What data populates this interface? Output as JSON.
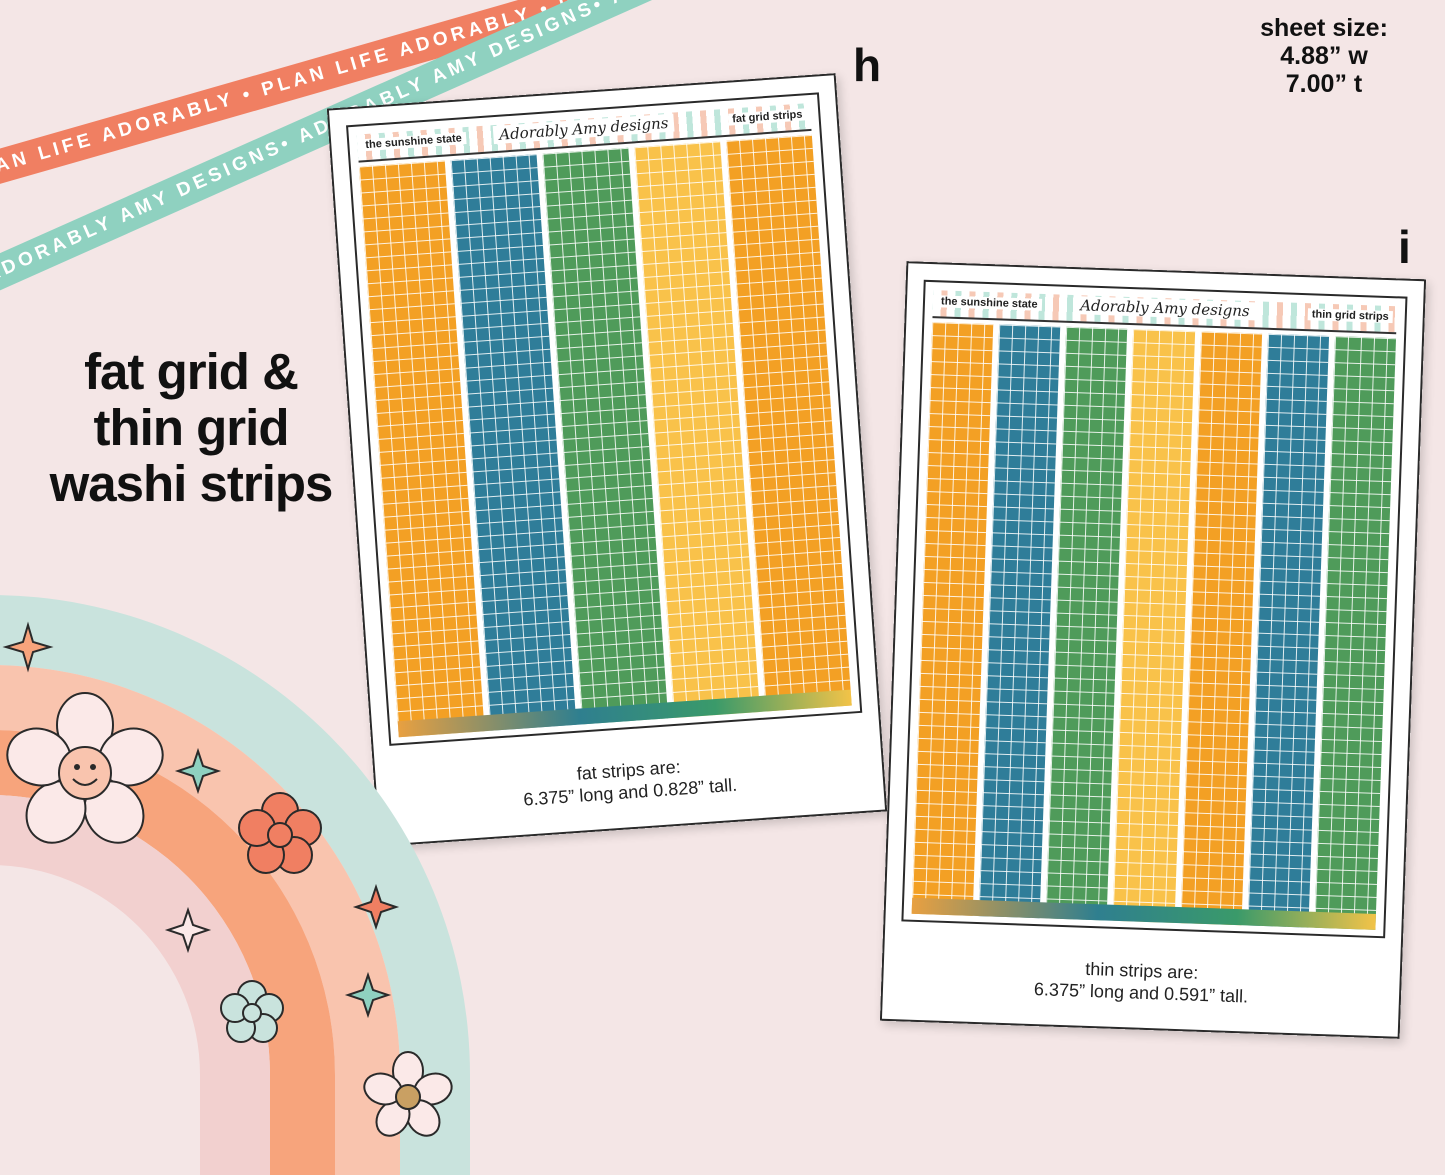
{
  "ribbons": {
    "coral_text": "PLAN LIFE ADORABLY • PLAN LIFE ADORABLY • PLAN LIFE ADORABLY",
    "teal_text": "ADORABLY AMY DESIGNS• ADORABLY AMY DESIGNS• ADORABLY AMY DESIGNS"
  },
  "sheet_size": {
    "label": "sheet size:",
    "width": "4.88” w",
    "height": "7.00” t"
  },
  "product_title": {
    "line1": "fat grid &",
    "line2": "thin grid",
    "line3": "washi strips"
  },
  "sheet_h": {
    "letter": "h",
    "header_left": "the sunshine state",
    "header_logo": "Adorably Amy designs",
    "header_right": "fat grid strips",
    "caption_line1": "fat strips are:",
    "caption_line2": "6.375” long and 0.828” tall.",
    "strip_colors": [
      "#f3a024",
      "#2f7d99",
      "#4f9b5a",
      "#f9c24a",
      "#f3a024"
    ]
  },
  "sheet_i": {
    "letter": "i",
    "header_left": "the sunshine state",
    "header_logo": "Adorably Amy designs",
    "header_right": "thin grid strips",
    "caption_line1": "thin strips are:",
    "caption_line2": "6.375” long and 0.591” tall.",
    "strip_colors": [
      "#f3a024",
      "#2f7d99",
      "#4f9b5a",
      "#f9c24a",
      "#f3a024",
      "#2f7d99",
      "#4f9b5a"
    ]
  },
  "colors": {
    "background": "#f4e6e6",
    "coral": "#f07f62",
    "teal": "#8fd1c0",
    "peach": "#f7a47c",
    "light_peach": "#f9c4ae",
    "pink": "#f2d0cf"
  }
}
